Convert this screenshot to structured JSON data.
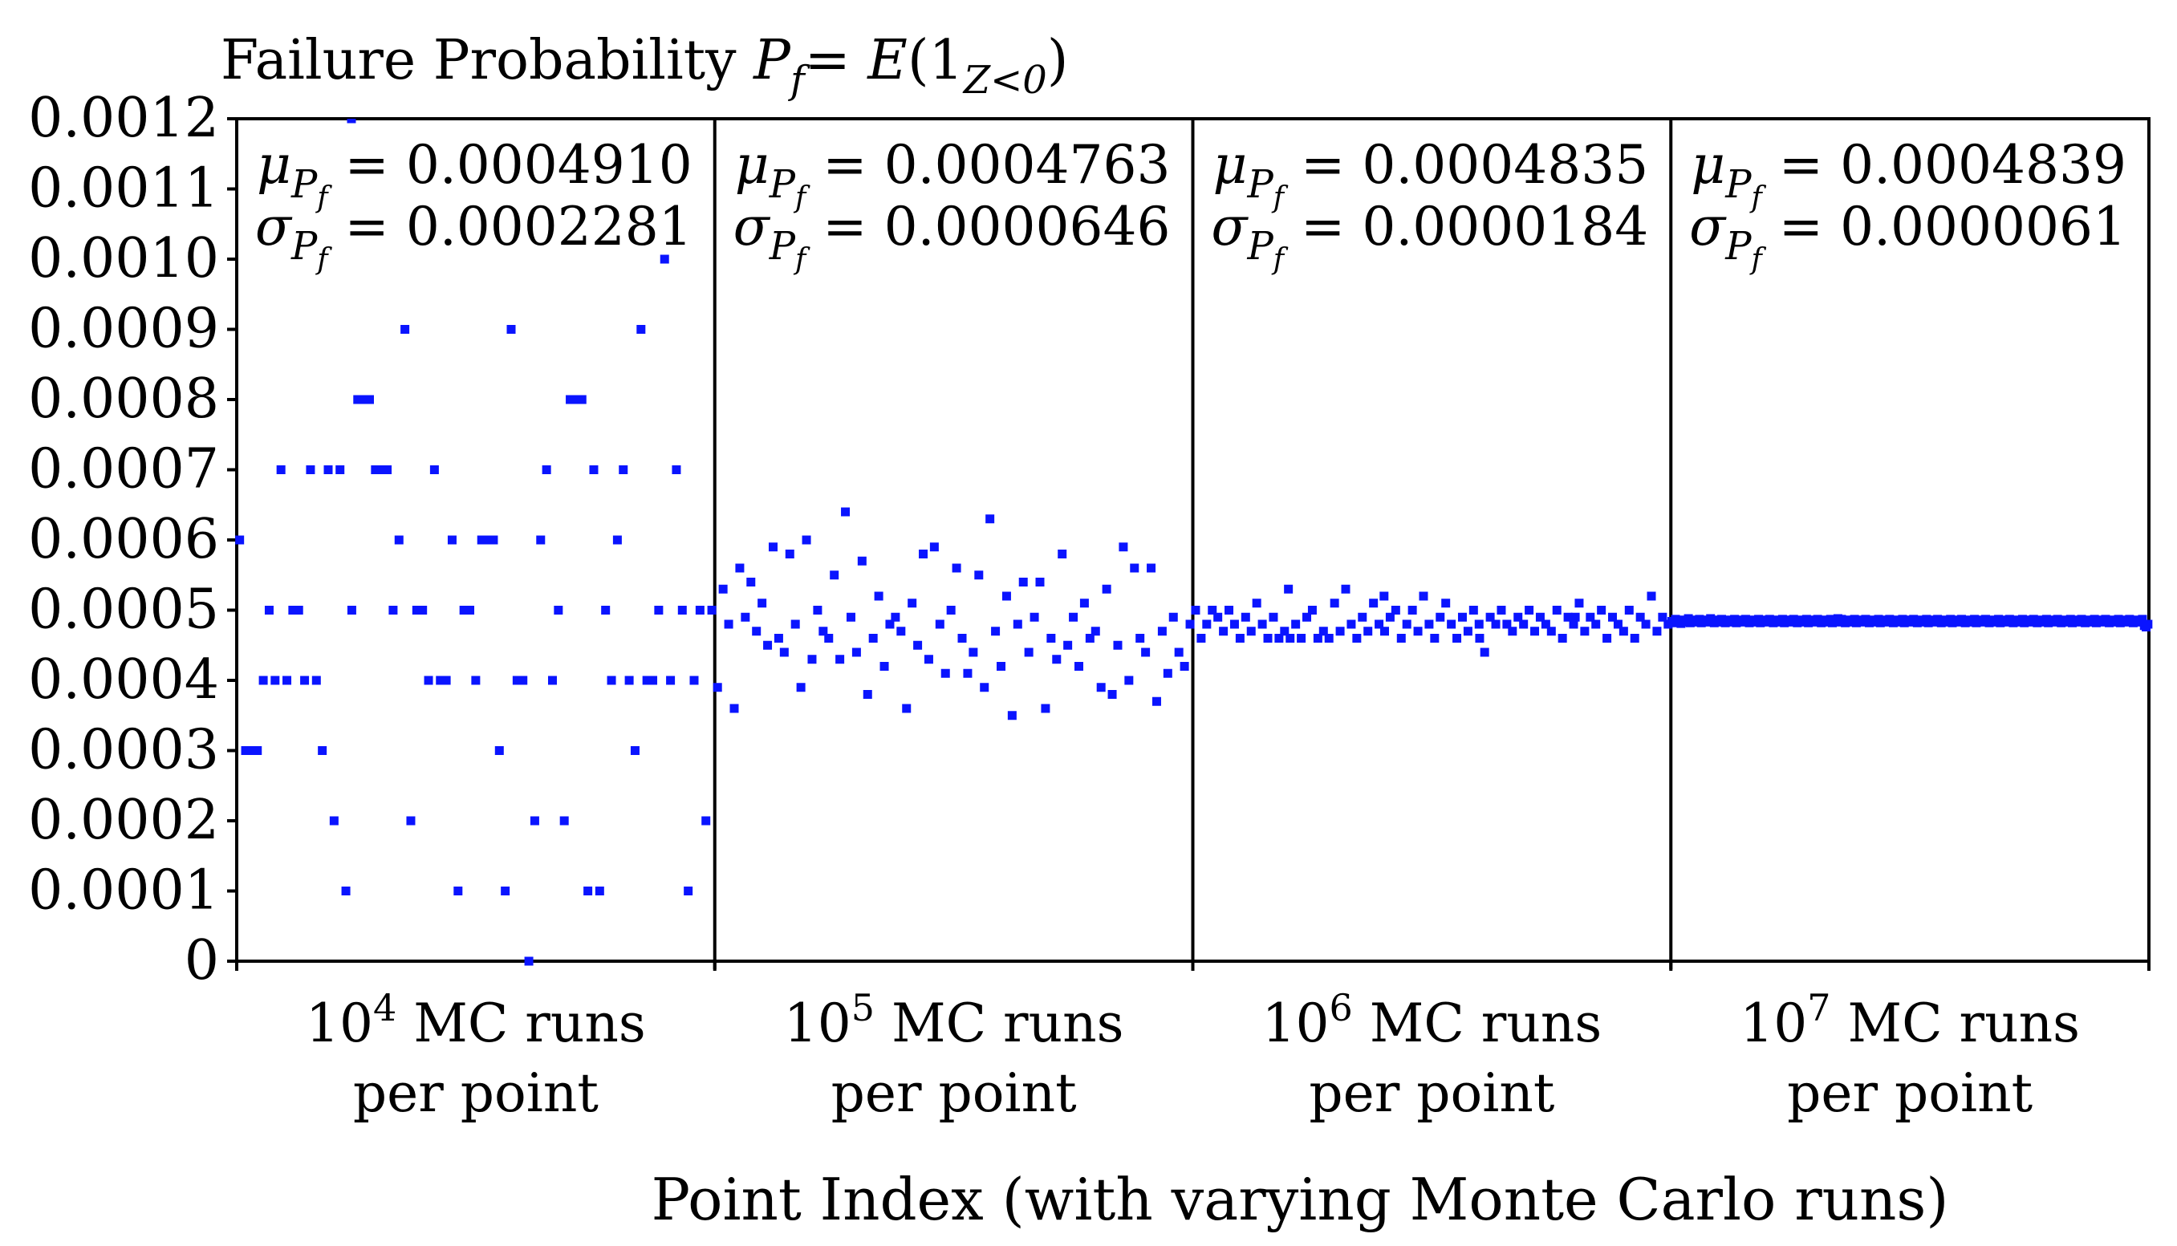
{
  "chart_data": {
    "type": "scatter",
    "title": {
      "prefix": "Failure Probability ",
      "p": "P",
      "p_sub": "f",
      "eq": "= ",
      "e": "E",
      "open": "(1",
      "ind_sub": "Z<0",
      "close": ")"
    },
    "xlabel": "Point Index (with varying Monte Carlo runs)",
    "ylabel": "",
    "ylim": [
      0,
      0.0012
    ],
    "yticks": [
      "0",
      "0.0001",
      "0.0002",
      "0.0003",
      "0.0004",
      "0.0005",
      "0.0006",
      "0.0007",
      "0.0008",
      "0.0009",
      "0.0010",
      "0.0011",
      "0.0012"
    ],
    "marker_color": "#0a14ff",
    "mu_symbol": "μ",
    "sigma_symbol": "σ",
    "groups": [
      {
        "runs_base": "10",
        "runs_exp": "4",
        "runs_text": " MC runs",
        "per_point": "per point",
        "mu": "0.0004910",
        "sigma": "0.0002281",
        "values": [
          0.0006,
          0.0003,
          0.0003,
          0.0003,
          0.0004,
          0.0005,
          0.0004,
          0.0007,
          0.0004,
          0.0005,
          0.0005,
          0.0004,
          0.0007,
          0.0004,
          0.0003,
          0.0007,
          0.0002,
          0.0007,
          0.0001,
          0.0005,
          0.0008,
          0.0008,
          0.0008,
          0.0007,
          0.0007,
          0.0007,
          0.0005,
          0.0006,
          0.0009,
          0.0002,
          0.0005,
          0.0005,
          0.0004,
          0.0007,
          0.0004,
          0.0004,
          0.0006,
          0.0001,
          0.0005,
          0.0005,
          0.0004,
          0.0006,
          0.0006,
          0.0006,
          0.0003,
          0.0001,
          0.0009,
          0.0004,
          0.0004,
          0.0,
          0.0002,
          0.0006,
          0.0007,
          0.0004,
          0.0005,
          0.0002,
          0.0008,
          0.0008,
          0.0008,
          0.0001,
          0.0007,
          0.0001,
          0.0005,
          0.0004,
          0.0006,
          0.0007,
          0.0004,
          0.0003,
          0.0009,
          0.0004,
          0.0004,
          0.0005,
          0.001,
          0.0004,
          0.0007,
          0.0005,
          0.0001,
          0.0004,
          0.0005,
          0.0002,
          0.0005
        ],
        "outlier_top": 0.0012
      },
      {
        "runs_base": "10",
        "runs_exp": "5",
        "runs_text": " MC runs",
        "per_point": "per point",
        "mu": "0.0004763",
        "sigma": "0.0000646",
        "values": [
          0.00039,
          0.00053,
          0.00048,
          0.00036,
          0.00056,
          0.00049,
          0.00054,
          0.00047,
          0.00051,
          0.00045,
          0.00059,
          0.00046,
          0.00044,
          0.00058,
          0.00048,
          0.00039,
          0.0006,
          0.00043,
          0.0005,
          0.00047,
          0.00046,
          0.00055,
          0.00043,
          0.00064,
          0.00049,
          0.00044,
          0.00057,
          0.00038,
          0.00046,
          0.00052,
          0.00042,
          0.00048,
          0.00049,
          0.00047,
          0.00036,
          0.00051,
          0.00045,
          0.00058,
          0.00043,
          0.00059,
          0.00048,
          0.00041,
          0.0005,
          0.00056,
          0.00046,
          0.00041,
          0.00044,
          0.00055,
          0.00039,
          0.00063,
          0.00047,
          0.00042,
          0.00052,
          0.00035,
          0.00048,
          0.00054,
          0.00044,
          0.00049,
          0.00054,
          0.00036,
          0.00046,
          0.00043,
          0.00058,
          0.00045,
          0.00049,
          0.00042,
          0.00051,
          0.00046,
          0.00047,
          0.00039,
          0.00053,
          0.00038,
          0.00045,
          0.00059,
          0.0004,
          0.00056,
          0.00046,
          0.00044,
          0.00056,
          0.00037,
          0.00047,
          0.00041,
          0.00049,
          0.00044,
          0.00042,
          0.00048
        ]
      },
      {
        "runs_base": "10",
        "runs_exp": "6",
        "runs_text": " MC runs",
        "per_point": "per point",
        "mu": "0.0004835",
        "sigma": "0.0000184",
        "values": [
          0.0005,
          0.00046,
          0.00048,
          0.0005,
          0.00049,
          0.00047,
          0.0005,
          0.00048,
          0.00046,
          0.00049,
          0.00047,
          0.00051,
          0.00048,
          0.00046,
          0.00049,
          0.00046,
          0.00047,
          0.00046,
          0.00048,
          0.00046,
          0.00049,
          0.0005,
          0.00046,
          0.00047,
          0.00046,
          0.00051,
          0.00047,
          0.00053,
          0.00048,
          0.00046,
          0.00049,
          0.00047,
          0.00051,
          0.00048,
          0.00047,
          0.00049,
          0.0005,
          0.00046,
          0.00048,
          0.0005,
          0.00047,
          0.00052,
          0.00048,
          0.00046,
          0.00049,
          0.00051,
          0.00048,
          0.00046,
          0.00049,
          0.00047,
          0.0005,
          0.00048,
          0.00044,
          0.00049,
          0.00048,
          0.0005,
          0.00048,
          0.00047,
          0.00049,
          0.00048,
          0.0005,
          0.00047,
          0.00049,
          0.00048,
          0.00047,
          0.0005,
          0.00046,
          0.00049,
          0.00048,
          0.00051,
          0.00047,
          0.00049,
          0.00048,
          0.0005,
          0.00046,
          0.00049,
          0.00048,
          0.00047,
          0.0005,
          0.00046,
          0.00049,
          0.00048,
          0.00052,
          0.00047,
          0.00049,
          0.00048
        ],
        "extras": [
          0.00053,
          0.00052,
          0.00046,
          0.00049
        ]
      },
      {
        "runs_base": "10",
        "runs_exp": "7",
        "runs_text": " MC runs",
        "per_point": "per point",
        "mu": "0.0004839",
        "sigma": "0.0000061",
        "values": [
          0.000484,
          0.000482,
          0.000487,
          0.000483,
          0.000485,
          0.000481,
          0.000486,
          0.000484,
          0.000483,
          0.000488,
          0.000482,
          0.000485,
          0.000484,
          0.000486,
          0.000483,
          0.000487,
          0.000482,
          0.000485,
          0.000484,
          0.000486,
          0.000483,
          0.000488,
          0.000484,
          0.000482,
          0.000486,
          0.000485,
          0.000483,
          0.000487,
          0.000484,
          0.000482,
          0.000486,
          0.000484,
          0.000485,
          0.000483,
          0.000487,
          0.000482,
          0.000484,
          0.000486,
          0.000485,
          0.000483,
          0.000487,
          0.000484,
          0.000482,
          0.000486,
          0.000484,
          0.000485,
          0.000483,
          0.000487,
          0.000482,
          0.000484,
          0.000486,
          0.000485,
          0.000483,
          0.000487,
          0.000484,
          0.000482,
          0.000486,
          0.000484,
          0.000485,
          0.000483,
          0.000487,
          0.000482,
          0.000484,
          0.000486,
          0.000485,
          0.000483,
          0.000487,
          0.000484,
          0.000482,
          0.000486,
          0.000484,
          0.000485,
          0.000483,
          0.000487,
          0.000482,
          0.000484,
          0.000486,
          0.000485,
          0.000483,
          0.000487,
          0.000484,
          0.000482,
          0.000486,
          0.000484,
          0.000485,
          0.000483,
          0.000487,
          0.000482,
          0.000484,
          0.000486,
          0.000488,
          0.000483,
          0.000487,
          0.000484,
          0.000482,
          0.000486,
          0.000484,
          0.000485,
          0.000483,
          0.000487,
          0.000482,
          0.000484,
          0.000486,
          0.000485,
          0.000483,
          0.000487,
          0.000484,
          0.000482,
          0.000486,
          0.000484,
          0.000485,
          0.000483,
          0.000487,
          0.000482,
          0.000484,
          0.000486,
          0.000485,
          0.000483,
          0.000487,
          0.000484,
          0.000482,
          0.000486,
          0.000484,
          0.000485,
          0.000483,
          0.000487,
          0.000482,
          0.000484,
          0.000486,
          0.000485,
          0.000483,
          0.000487,
          0.000484,
          0.000482,
          0.000486,
          0.000484,
          0.000485,
          0.000483,
          0.000487,
          0.000482,
          0.000484,
          0.000486,
          0.000485,
          0.000483,
          0.000487,
          0.000484,
          0.000482,
          0.000486,
          0.000484,
          0.000485,
          0.000483,
          0.000487,
          0.000482,
          0.000484,
          0.000486,
          0.000485,
          0.000483,
          0.000487,
          0.000484,
          0.000482,
          0.000486,
          0.000484,
          0.000485,
          0.000483,
          0.000487,
          0.000482,
          0.000484,
          0.000486,
          0.000485,
          0.000483,
          0.000487,
          0.000484,
          0.000482,
          0.000486,
          0.000484,
          0.000485,
          0.000483,
          0.000487,
          0.000482,
          0.000484,
          0.000486,
          0.000485,
          0.000483,
          0.000487,
          0.000484,
          0.000482,
          0.000486,
          0.000484,
          0.000485,
          0.000483,
          0.000487,
          0.000482,
          0.000484,
          0.000486,
          0.000485,
          0.000483,
          0.000487,
          0.000484,
          0.000482,
          0.000486,
          0.000484,
          0.000485,
          0.000483,
          0.000487,
          0.000482,
          0.000484,
          0.000486,
          0.000485,
          0.000483,
          0.000487,
          0.000484,
          0.000482,
          0.000486,
          0.000484,
          0.000485,
          0.000483,
          0.000487,
          0.000482,
          0.000484,
          0.000486,
          0.000485,
          0.000483,
          0.000487,
          0.000484,
          0.000482,
          0.000486,
          0.000484,
          0.000485,
          0.000483,
          0.000487,
          0.000482,
          0.000484,
          0.000486,
          0.000485,
          0.000483,
          0.000487,
          0.000484,
          0.000482,
          0.000486,
          0.000484,
          0.000485,
          0.000483,
          0.000487,
          0.000482,
          0.000484,
          0.000486,
          0.000485,
          0.000483,
          0.000487,
          0.000484,
          0.000482,
          0.000486,
          0.000484,
          0.000485,
          0.000483,
          0.000487,
          0.000478,
          0.000476,
          0.00048
        ]
      }
    ]
  }
}
